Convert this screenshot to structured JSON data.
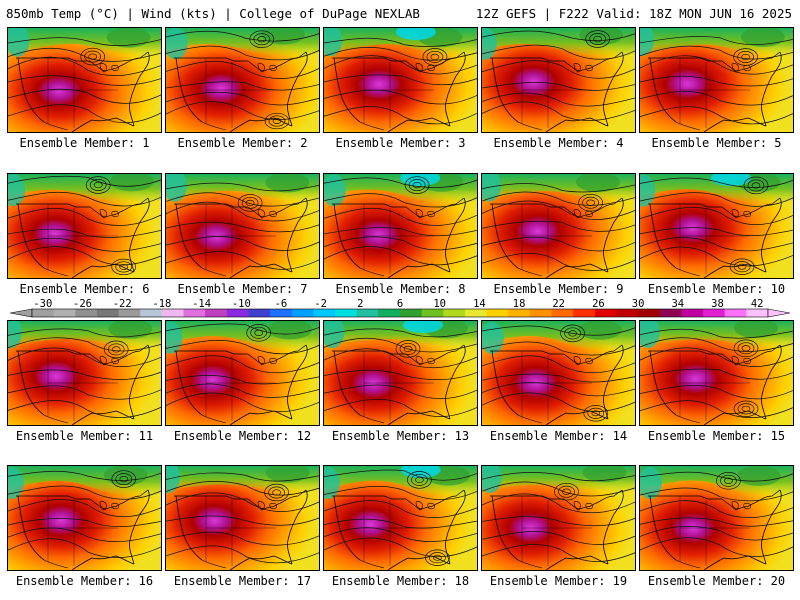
{
  "header": {
    "left": "850mb Temp (°C) | Wind (kts) | College of DuPage NEXLAB",
    "right": "12Z GEFS | F222 Valid: 18Z MON JUN 16 2025"
  },
  "colorbar": {
    "labels": [
      "-30",
      "-26",
      "-22",
      "-18",
      "-14",
      "-10",
      "-6",
      "-2",
      "2",
      "6",
      "10",
      "14",
      "18",
      "22",
      "26",
      "30",
      "34",
      "38",
      "42"
    ],
    "colors": [
      "#a0a0a0",
      "#b0b0b0",
      "#909090",
      "#787878",
      "#9a9a9a",
      "#b5c7d6",
      "#f0b8f0",
      "#e070e0",
      "#c040c0",
      "#8a2be2",
      "#4040d0",
      "#1e70ff",
      "#00a0ff",
      "#00c8ff",
      "#00e0e0",
      "#20c0a0",
      "#10b060",
      "#30a030",
      "#70c020",
      "#b0d820",
      "#e8e830",
      "#ffd000",
      "#ffb000",
      "#ff9000",
      "#ff6a00",
      "#ff3000",
      "#e00000",
      "#c00000",
      "#a00000",
      "#900050",
      "#c000a0",
      "#e020d0",
      "#ff70ff",
      "#ffc0ff"
    ]
  },
  "members": [
    {
      "label": "Ensemble Member: 1"
    },
    {
      "label": "Ensemble Member: 2"
    },
    {
      "label": "Ensemble Member: 3"
    },
    {
      "label": "Ensemble Member: 4"
    },
    {
      "label": "Ensemble Member: 5"
    },
    {
      "label": "Ensemble Member: 6"
    },
    {
      "label": "Ensemble Member: 7"
    },
    {
      "label": "Ensemble Member: 8"
    },
    {
      "label": "Ensemble Member: 9"
    },
    {
      "label": "Ensemble Member: 10"
    },
    {
      "label": "Ensemble Member: 11"
    },
    {
      "label": "Ensemble Member: 12"
    },
    {
      "label": "Ensemble Member: 13"
    },
    {
      "label": "Ensemble Member: 14"
    },
    {
      "label": "Ensemble Member: 15"
    },
    {
      "label": "Ensemble Member: 16"
    },
    {
      "label": "Ensemble Member: 17"
    },
    {
      "label": "Ensemble Member: 18"
    },
    {
      "label": "Ensemble Member: 19"
    },
    {
      "label": "Ensemble Member: 20"
    }
  ]
}
